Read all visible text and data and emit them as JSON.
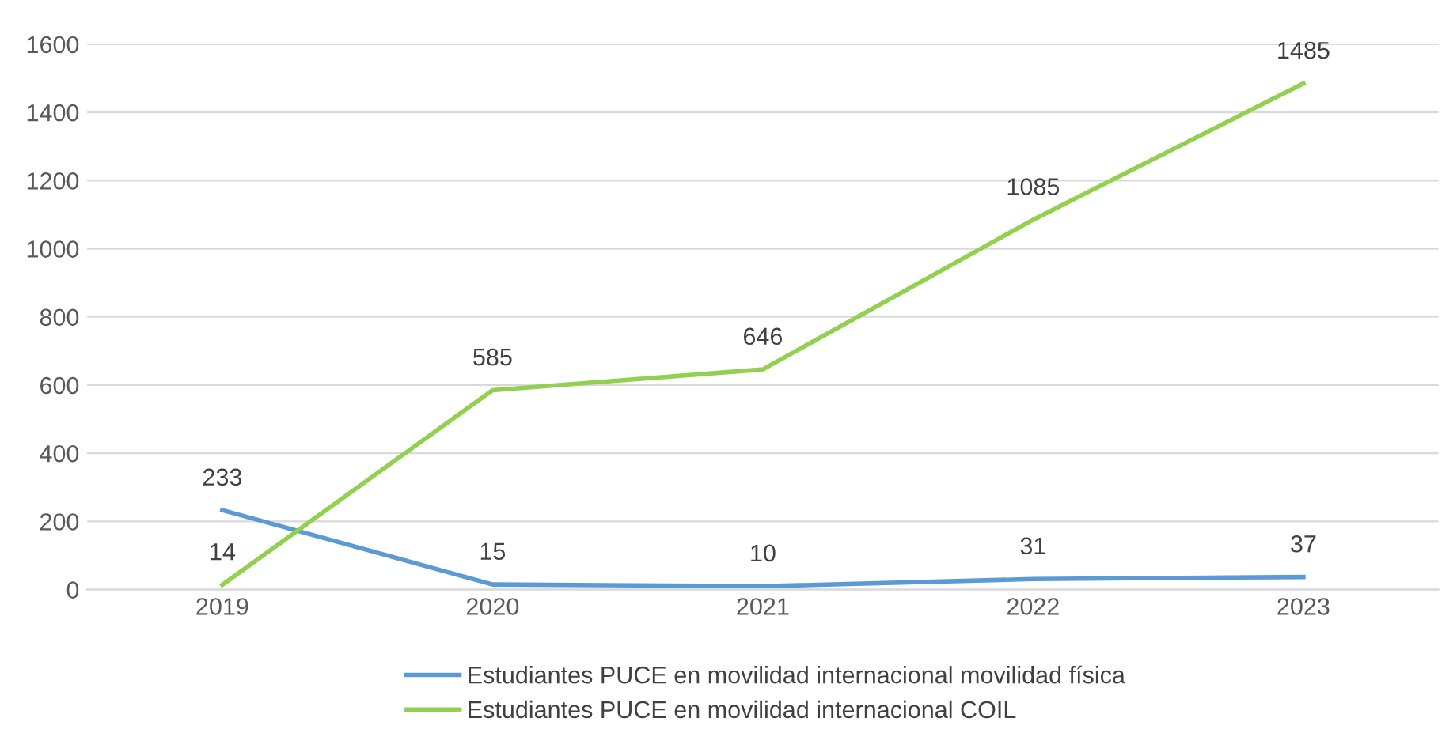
{
  "chart_data": {
    "type": "line",
    "categories": [
      "2019",
      "2020",
      "2021",
      "2022",
      "2023"
    ],
    "series": [
      {
        "name": "Estudiantes PUCE en movilidad internacional movilidad física",
        "color": "#5b9bd5",
        "values": [
          233,
          15,
          10,
          31,
          37
        ]
      },
      {
        "name": "Estudiantes PUCE en movilidad internacional COIL",
        "color": "#92d050",
        "values": [
          14,
          585,
          646,
          1085,
          1485
        ]
      }
    ],
    "ylim": [
      0,
      1600
    ],
    "yticks": [
      0,
      200,
      400,
      600,
      800,
      1000,
      1200,
      1400,
      1600
    ],
    "grid": "y",
    "legend": "bottom",
    "data_labels": true,
    "marker": "none",
    "line_style": "solid"
  }
}
